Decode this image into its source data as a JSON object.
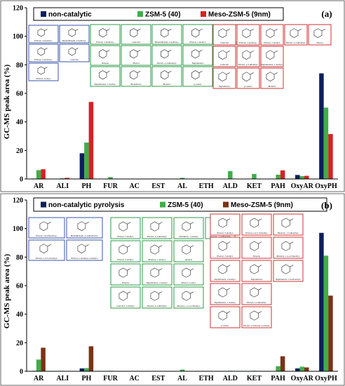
{
  "colors": {
    "non_catalytic": "#0d1f5c",
    "zsm5": "#3fae4a",
    "meso_zsm5": "#d42323",
    "meso_zsm5_b": "#7a3316",
    "box_blue": "#3a54a8",
    "box_green": "#2e9a45",
    "box_red": "#cc3333"
  },
  "chart_data": [
    {
      "type": "bar",
      "panel_label": "(a)",
      "ylabel": "GC-MS peak area (%)",
      "xlabel": "",
      "ylim": [
        0,
        120
      ],
      "yticks": [
        0,
        20,
        40,
        60,
        80,
        100,
        120
      ],
      "grid": false,
      "legend_position": "top",
      "categories": [
        "AR",
        "ALI",
        "PH",
        "FUR",
        "AC",
        "EST",
        "AL",
        "ETH",
        "ALD",
        "KET",
        "PAH",
        "OxyAR",
        "OxyPH"
      ],
      "series": [
        {
          "name": "non-catalytic",
          "color_key": "non_catalytic",
          "values": [
            0.3,
            0,
            18,
            0,
            0,
            0,
            0,
            0,
            0,
            0,
            0.2,
            2.8,
            74
          ]
        },
        {
          "name": "ZSM-5 (40)",
          "color_key": "zsm5",
          "values": [
            6.2,
            0.5,
            25.5,
            1.3,
            0,
            0,
            0.8,
            0,
            5.5,
            3.5,
            3.0,
            2.0,
            50
          ]
        },
        {
          "name": "Meso-ZSM-5 (9nm)",
          "color_key": "meso_zsm5",
          "values": [
            6.8,
            0.8,
            54,
            0,
            0,
            0,
            0,
            0,
            0,
            0,
            6.0,
            2.2,
            31.5
          ]
        }
      ],
      "structure_boxes": [
        {
          "color_key": "box_blue",
          "items": [
            "Phenol, 2-methoxy-",
            "Benzaldehyde, 2-hydroxy-",
            "Phenol, 2-methoxy-",
            "Catechol",
            "Phenol, 2-ethyl-"
          ]
        },
        {
          "color_key": "box_green",
          "items": [
            "Phenol, 2-methoxy-",
            "Catechol",
            "Benzaldehyde, 2-hydroxy-",
            "Phenol, 2-methyl-",
            "Phenol, 2-methoxy-4-methyl-",
            "Toluene",
            "Phenol",
            "Phenol, 2,4-dimethyl-",
            "Naphthalene",
            "Naphthalene, 2-methyl-",
            "Benzofuran",
            "Benzene",
            "p-xylene"
          ]
        },
        {
          "color_key": "box_red",
          "items": [
            "Catechol",
            "Phenol, 2-methoxy-",
            "Phenol, 2-methyl-",
            "Phenol, 3,4-dimethyl-",
            "Phenol",
            "Catechol",
            "Phenol, 2,3-dimethyl-",
            "Naphthalene, 1-methyl-",
            "Naphthalene",
            "p-xylene",
            "Benzene"
          ]
        }
      ]
    },
    {
      "type": "bar",
      "panel_label": "(b)",
      "ylabel": "GC-MS peak area (%)",
      "xlabel": "",
      "ylim": [
        0,
        120
      ],
      "yticks": [
        0,
        20,
        40,
        60,
        80,
        100,
        120
      ],
      "grid": false,
      "legend_position": "top",
      "categories": [
        "AR",
        "ALI",
        "PH",
        "FUR",
        "AC",
        "EST",
        "AL",
        "ETH",
        "ALD",
        "KET",
        "PAH",
        "OxyAR",
        "OxyPH"
      ],
      "series": [
        {
          "name": "non-catalytic pyrolysis",
          "color_key": "non_catalytic",
          "values": [
            0.3,
            0,
            2.0,
            0,
            0,
            0,
            0,
            0,
            0,
            0,
            0.2,
            2.0,
            97
          ]
        },
        {
          "name": "ZSM-5 (40)",
          "color_key": "zsm5",
          "values": [
            8.2,
            0.3,
            2.2,
            0.3,
            0,
            0,
            1.2,
            0,
            0.3,
            0.3,
            3.5,
            3.2,
            81
          ]
        },
        {
          "name": "Meso-ZSM-5 (9nm)",
          "color_key": "meso_zsm5_b",
          "values": [
            16.5,
            0,
            17.5,
            0,
            0,
            0,
            0,
            0,
            0,
            0,
            10.5,
            2.7,
            53
          ]
        }
      ],
      "structure_boxes": [
        {
          "color_key": "box_blue",
          "items": [
            "Phenol, 2,6-dimethoxy-",
            "Benzaldehyde, 3,4-dimethoxy-",
            "Phenol, 2,3,5-trimethyl-",
            "Phenol, 2-methoxy-4-methyl-"
          ]
        },
        {
          "color_key": "box_green",
          "items": [
            "Phenol, 2-methyl-",
            "Phenol, 2,4-dimethyl-",
            "1H-Indene, 1-methyl-",
            "Benzene, 1,3-dimethyl-",
            "Phenol, 3-methyl-",
            "Benzene, 1-methyl-",
            "Azulene",
            "Toluene",
            "Naphthalene, 2-methyl-",
            "Phenol, 2-ethyl-",
            "Catechol, 3-methyl-",
            "Phenol, 3,4-dimethyl-",
            "Benzene, 1,2,4-trimethyl-"
          ]
        },
        {
          "color_key": "box_red",
          "items": [
            "Phenol, 3-methyl-",
            "Phenol, 2,4,5-trimethyl-",
            "Benzene, 1,3-dimethyl-",
            "Phenol, 3-methyl-",
            "Toluene",
            "Benzene, 1,2,4-trimethyl-",
            "Naphthalene, 2-methyl-",
            "Naphthalene",
            "Naphthalene, 2,6-dimethyl-",
            "Naphthalene, 1-methyl-",
            "Phenol, 2,4-dimethyl-",
            "p-xylene",
            "Phenol, 2-methoxy-4-methyl-"
          ]
        }
      ]
    }
  ]
}
